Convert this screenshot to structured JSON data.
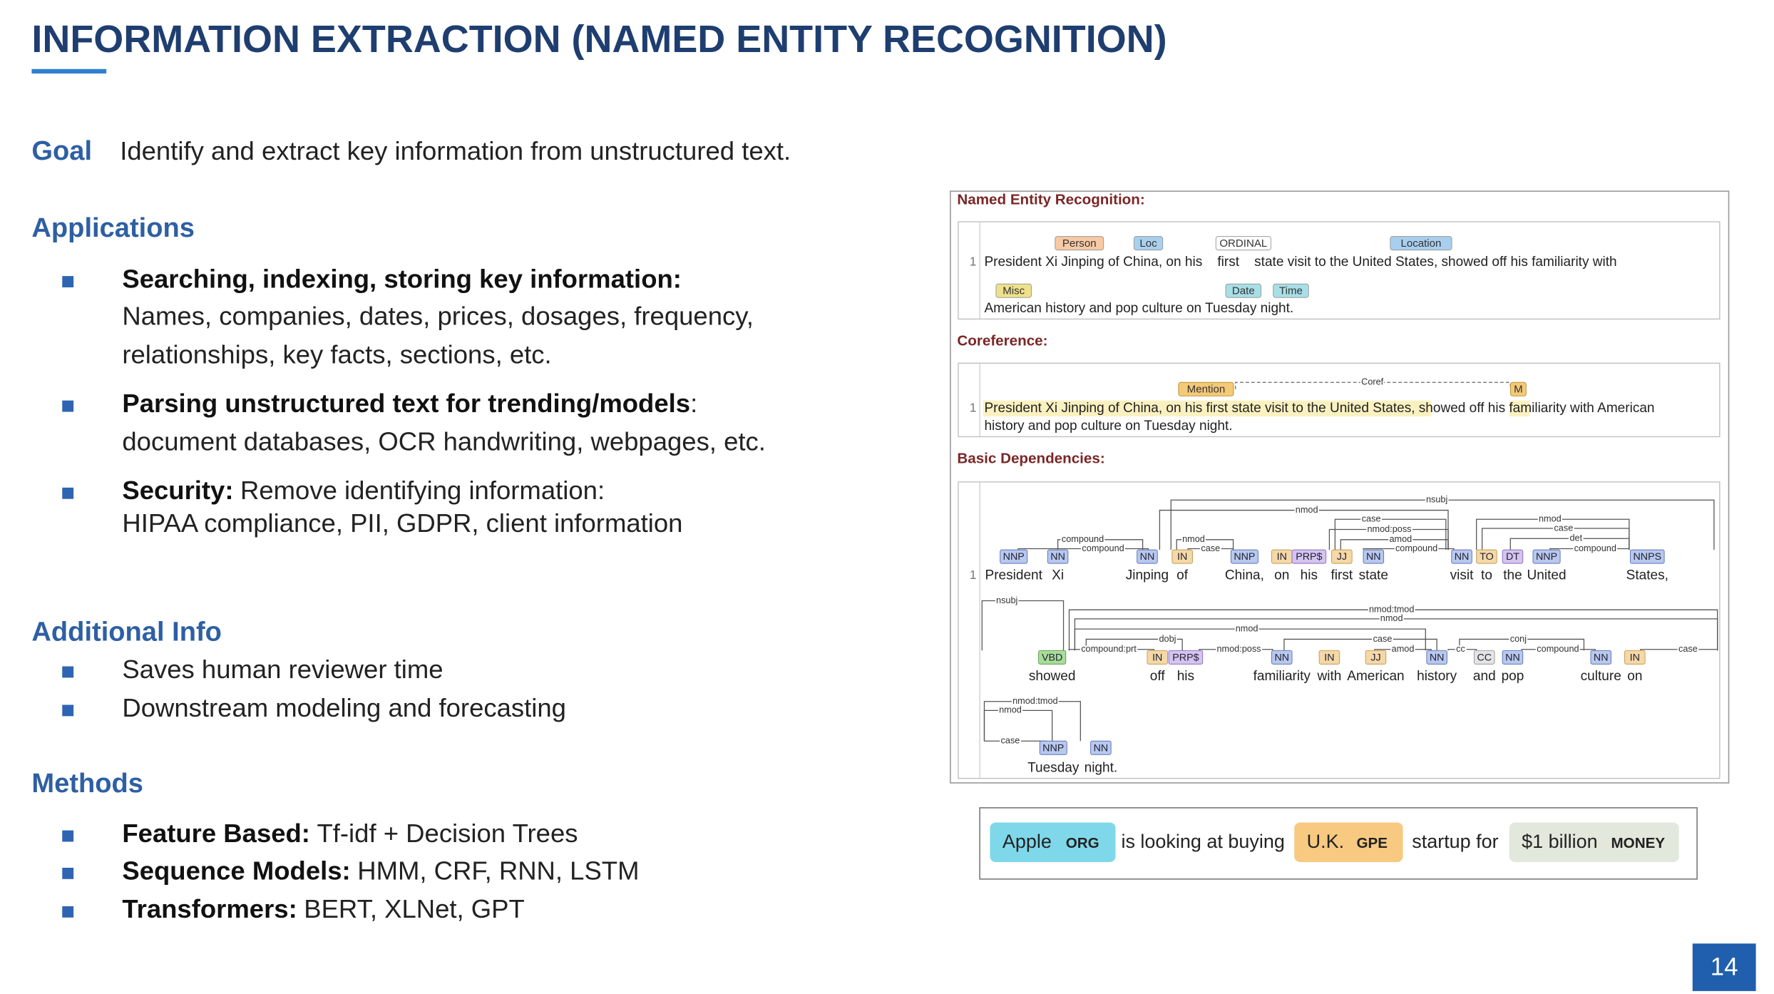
{
  "header": {
    "title": "INFORMATION EXTRACTION (NAMED ENTITY RECOGNITION)"
  },
  "goal": {
    "label": "Goal",
    "text": "Identify and extract key information from unstructured text."
  },
  "sections": [
    {
      "heading": "Applications",
      "items": [
        {
          "bold": "Searching, indexing, storing key information:",
          "lines": [
            "Names, companies, dates, prices, dosages, frequency,",
            "relationships, key facts, sections, etc."
          ]
        },
        {
          "bold": "Parsing unstructured text for trending/models",
          "rest": ":",
          "lines": [
            "document databases, OCR handwriting, webpages, etc."
          ]
        },
        {
          "bold": "Security:",
          "rest": "Remove identifying information:",
          "lines": [
            "HIPAA compliance, PII, GDPR, client information"
          ]
        }
      ]
    },
    {
      "heading": "Additional Info",
      "items": [
        {
          "rest": "Saves human reviewer time"
        },
        {
          "rest": "Downstream modeling and forecasting"
        }
      ]
    },
    {
      "heading": "Methods",
      "items": [
        {
          "bold": "Feature Based:",
          "rest": "Tf-idf + Decision Trees"
        },
        {
          "bold": "Sequence Models:",
          "rest": "HMM, CRF, RNN, LSTM"
        },
        {
          "bold": "Transformers:",
          "rest": "BERT, XLNet, GPT"
        }
      ]
    }
  ],
  "figure": {
    "ner": {
      "heading": "Named Entity Recognition:",
      "line_number": "1",
      "lines": [
        "President Xi Jinping of China, on his    first    state visit to the United States, showed off his familiarity with",
        "American history and pop culture on Tuesday night."
      ],
      "tags": [
        "Person",
        "Loc",
        "ORDINAL",
        "Location",
        "Misc",
        "Date",
        "Time"
      ]
    },
    "coreference": {
      "heading": "Coreference:",
      "line_number": "1",
      "lines": [
        "President Xi Jinping of China, on his first state visit to the United States, showed off his familiarity with American",
        "history and pop culture on Tuesday night."
      ],
      "tags": [
        "Mention",
        "M"
      ],
      "link": "Coref"
    },
    "dependencies": {
      "heading": "Basic Dependencies:",
      "line_number": "1",
      "rows": [
        {
          "words": [
            "President",
            "Xi",
            "Jinping",
            "of",
            "China,",
            "on",
            "his",
            "first",
            "state",
            "visit",
            "to",
            "the",
            "United",
            "States,"
          ],
          "tags": [
            "NNP",
            "NN",
            "NN",
            "IN",
            "NNP",
            "IN",
            "PRP$",
            "JJ",
            "NN",
            "NN",
            "TO",
            "DT",
            "NNP",
            "NNPS"
          ],
          "arcs": [
            "nsubj",
            "nmod",
            "case",
            "nmod:poss",
            "amod",
            "compound",
            "compound",
            "compound",
            "nmod",
            "case",
            "det",
            "compound",
            "nmod",
            "case"
          ]
        },
        {
          "words": [
            "showed",
            "off",
            "his",
            "familiarity",
            "with",
            "American",
            "history",
            "and",
            "pop",
            "culture",
            "on"
          ],
          "tags": [
            "VBD",
            "IN",
            "PRP$",
            "NN",
            "IN",
            "JJ",
            "NN",
            "CC",
            "NN",
            "NN",
            "IN"
          ],
          "arcs": [
            "nsubj",
            "nmod:tmod",
            "nmod",
            "nmod",
            "dobj",
            "case",
            "conj",
            "compound:prt",
            "nmod:poss",
            "amod",
            "cc",
            "compound",
            "case"
          ]
        },
        {
          "words": [
            "Tuesday",
            "night."
          ],
          "tags": [
            "NNP",
            "NN"
          ],
          "arcs": [
            "nmod:tmod",
            "nmod",
            "case"
          ]
        }
      ]
    }
  },
  "example": {
    "parts": [
      {
        "text": "Apple",
        "label": "ORG"
      },
      {
        "text": "is looking at buying"
      },
      {
        "text": "U.K.",
        "label": "GPE"
      },
      {
        "text": "startup for"
      },
      {
        "text": "$1 billion",
        "label": "MONEY"
      }
    ]
  },
  "page_number": "14"
}
